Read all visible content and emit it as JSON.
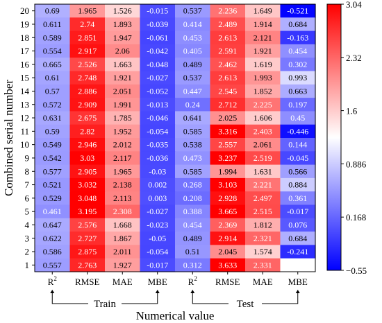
{
  "chart_data": {
    "type": "heatmap",
    "xlabel": "Numerical value",
    "ylabel": "Combined serial number",
    "columns": [
      "R",
      "RMSE",
      "MAE",
      "MBE",
      "R",
      "RMSE",
      "MAE",
      "MBE"
    ],
    "column_superscripts": [
      "2",
      "",
      "",
      "",
      "2",
      "",
      "",
      ""
    ],
    "groups": [
      {
        "label": "Train",
        "columns": [
          0,
          3
        ]
      },
      {
        "label": "Test",
        "columns": [
          4,
          7
        ]
      }
    ],
    "rows": [
      "20",
      "19",
      "18",
      "17",
      "16",
      "15",
      "14",
      "13",
      "12",
      "11",
      "10",
      "9",
      "8",
      "7",
      "6",
      "5",
      "4",
      "3",
      "2",
      "1"
    ],
    "values": [
      [
        "0.69",
        "1.965",
        "1.526",
        "-0.015",
        "0.537",
        "2.236",
        "1.649",
        "-0.521"
      ],
      [
        "0.611",
        "2.74",
        "1.893",
        "-0.039",
        "0.414",
        "2.489",
        "1.914",
        "0.684"
      ],
      [
        "0.589",
        "2.851",
        "1.947",
        "-0.061",
        "0.453",
        "2.613",
        "2.121",
        "-0.163"
      ],
      [
        "0.554",
        "2.917",
        "2.06",
        "-0.042",
        "0.405",
        "2.591",
        "1.921",
        "0.454"
      ],
      [
        "0.665",
        "2.526",
        "1.663",
        "-0.048",
        "0.489",
        "2.462",
        "1.619",
        "0.302"
      ],
      [
        "0.61",
        "2.748",
        "1.921",
        "-0.027",
        "0.537",
        "2.613",
        "1.993",
        "0.993"
      ],
      [
        "0.57",
        "2.886",
        "2.051",
        "-0.052",
        "0.447",
        "2.545",
        "1.852",
        "0.663"
      ],
      [
        "0.572",
        "2.909",
        "1.991",
        "-0.013",
        "0.24",
        "2.712",
        "2.225",
        "0.197"
      ],
      [
        "0.631",
        "2.675",
        "1.785",
        "-0.046",
        "0.641",
        "2.025",
        "1.606",
        "0.45"
      ],
      [
        "0.59",
        "2.82",
        "1.952",
        "-0.054",
        "0.585",
        "3.316",
        "2.403",
        "-0.446"
      ],
      [
        "0.549",
        "2.946",
        "2.012",
        "-0.035",
        "0.538",
        "2.557",
        "2.061",
        "0.144"
      ],
      [
        "0.542",
        "3.03",
        "2.117",
        "-0.036",
        "0.473",
        "3.237",
        "2.519",
        "-0.045"
      ],
      [
        "0.577",
        "2.905",
        "1.965",
        "-0.03",
        "0.585",
        "1.994",
        "1.631",
        "0.566"
      ],
      [
        "0.521",
        "3.032",
        "2.138",
        "0.002",
        "0.268",
        "3.103",
        "2.221",
        "0.884"
      ],
      [
        "0.529",
        "3.048",
        "2.113",
        "0.003",
        "0.208",
        "2.928",
        "2.497",
        "0.361"
      ],
      [
        "0.461",
        "3.195",
        "2.308",
        "-0.027",
        "0.388",
        "3.665",
        "2.515",
        "-0.017"
      ],
      [
        "0.647",
        "2.576",
        "1.668",
        "-0.023",
        "0.454",
        "2.369",
        "1.812",
        "0.076"
      ],
      [
        "0.622",
        "2.727",
        "1.867",
        "-0.05",
        "0.489",
        "2.914",
        "2.321",
        "0.684"
      ],
      [
        "0.586",
        "2.875",
        "2.011",
        "-0.054",
        "0.51",
        "2.045",
        "1.574",
        "-0.241"
      ],
      [
        "0.557",
        "2.763",
        "1.927",
        "-0.017",
        "0.312",
        "3.633",
        "2.331",
        ""
      ]
    ],
    "colorbar": {
      "min": -0.55,
      "max": 3.04,
      "ticks": [
        "3.04",
        "2.32",
        "1.6",
        "0.886",
        "0.168",
        "−0.55"
      ],
      "colors": [
        "#0000ff",
        "#ffffff",
        "#ff0000"
      ]
    }
  }
}
